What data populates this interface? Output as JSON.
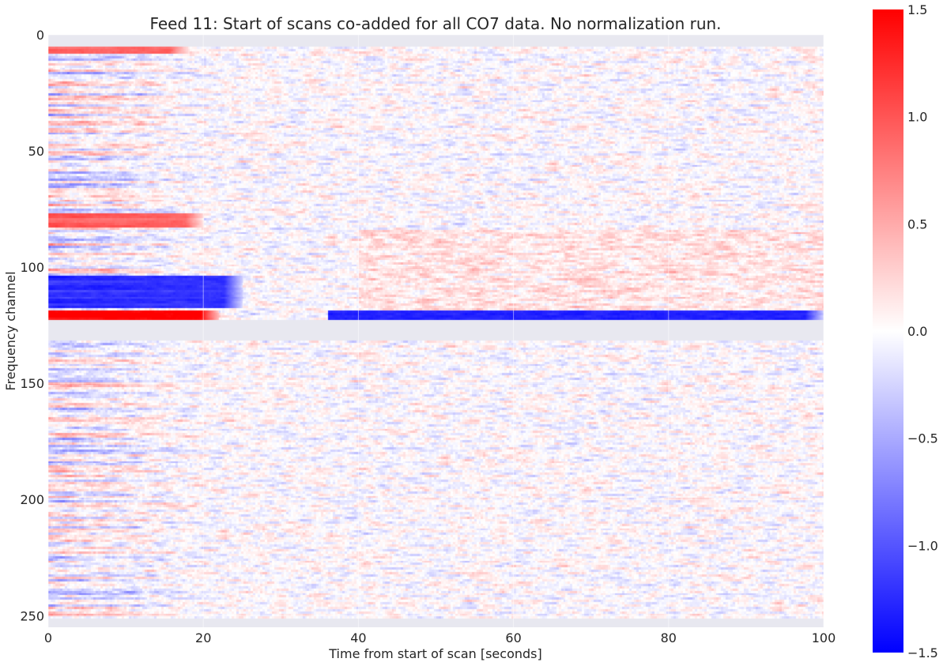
{
  "chart_data": {
    "type": "heatmap",
    "title": "Feed 11: Start of scans co-added for all CO7 data. No normalization run.",
    "xlabel": "Time from start of scan [seconds]",
    "ylabel": "Frequency channel",
    "xlim": [
      0,
      100
    ],
    "ylim": [
      255,
      0
    ],
    "xticks": [
      0,
      20,
      40,
      60,
      80,
      100
    ],
    "xtick_labels": [
      "0",
      "20",
      "40",
      "60",
      "80",
      "100"
    ],
    "yticks": [
      0,
      50,
      100,
      150,
      200,
      250
    ],
    "ytick_labels": [
      "0",
      "50",
      "100",
      "150",
      "200",
      "250"
    ],
    "colormap": "bwr",
    "vmin": -1.5,
    "vmax": 1.5,
    "colorbar_ticks": [
      1.5,
      1.0,
      0.5,
      0.0,
      -0.5,
      -1.0,
      -1.5
    ],
    "colorbar_tick_labels": [
      "1.5",
      "1.0",
      "0.5",
      "0.0",
      "−0.5",
      "−1.0",
      "−1.5"
    ],
    "masked_channels": [
      0,
      1,
      2,
      3,
      4,
      123,
      124,
      125,
      126,
      127,
      128,
      129,
      130,
      131,
      252,
      253,
      254,
      255
    ],
    "features": [
      {
        "channels": [
          4,
          7
        ],
        "time_range": [
          0,
          18
        ],
        "level": 0.9
      },
      {
        "channels": [
          77,
          82
        ],
        "time_range": [
          0,
          20
        ],
        "level": 0.9
      },
      {
        "channels": [
          104,
          117
        ],
        "time_range": [
          0,
          25
        ],
        "level": -1.2
      },
      {
        "channels": [
          119,
          122
        ],
        "time_range": [
          0,
          22
        ],
        "level": 1.5
      },
      {
        "channels": [
          119,
          122
        ],
        "time_range": [
          36,
          100
        ],
        "level": -1.3
      }
    ],
    "grid": true
  },
  "colors": {
    "background": "#ffffff",
    "mask": "#e8e8f0",
    "grid": "#ffffff",
    "text": "#262626"
  }
}
